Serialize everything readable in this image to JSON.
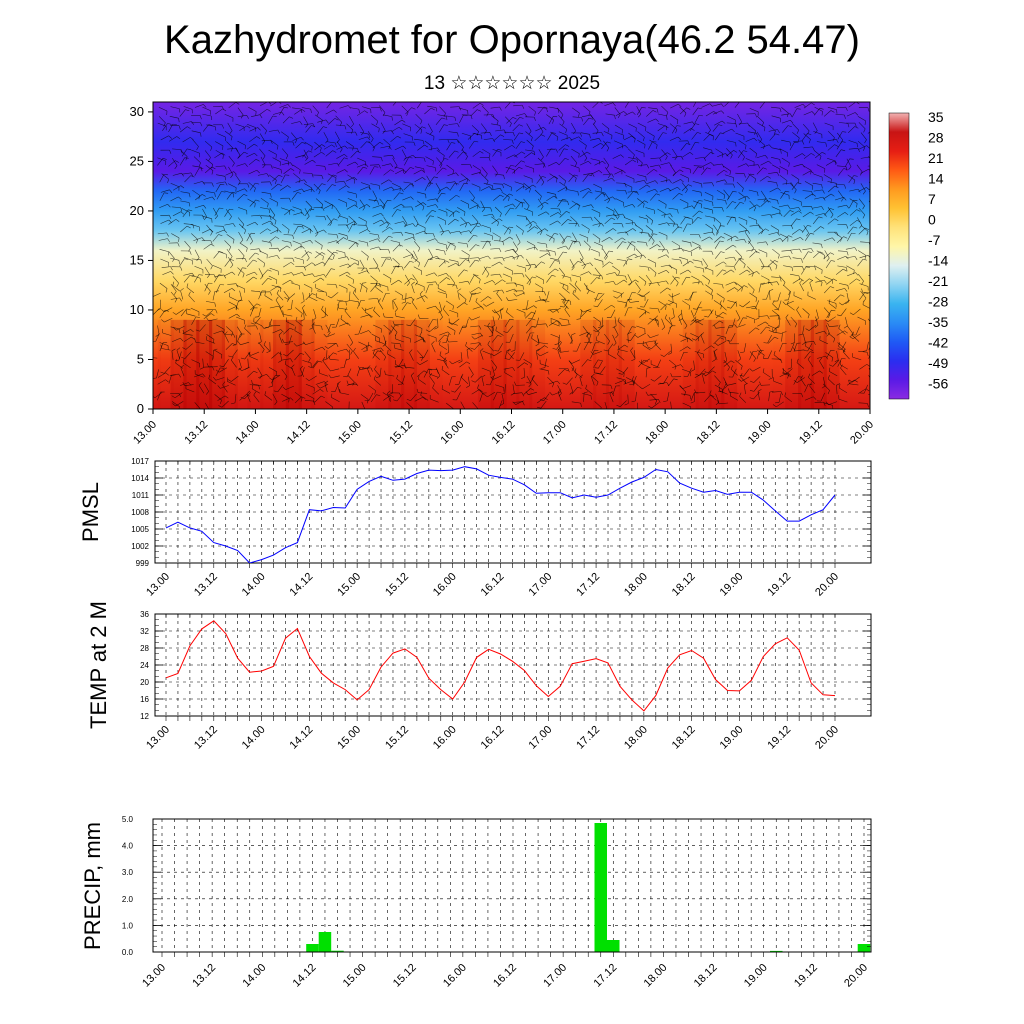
{
  "title": "Kazhydromet for Opornaya(46.2 54.47)",
  "subtitle": "13 ☆☆☆☆☆☆ 2025",
  "x_tick_labels": [
    "13.00",
    "13.12",
    "14.00",
    "14.12",
    "15.00",
    "15.12",
    "16.00",
    "16.12",
    "17.00",
    "17.12",
    "18.00",
    "18.12",
    "19.00",
    "19.12",
    "20.00"
  ],
  "colors": {
    "pmsl": "#0000ff",
    "temp": "#ff0000",
    "precip": "#00e000"
  },
  "chart_data": [
    {
      "type": "heatmap",
      "name": "cross-section",
      "y_ticks": [
        "0",
        "5",
        "10",
        "15",
        "20",
        "25",
        "30"
      ],
      "ylim": [
        0,
        31
      ],
      "xlim": [
        "13.00",
        "20.00"
      ],
      "colorbar_labels": [
        "35",
        "28",
        "21",
        "14",
        "7",
        "0",
        "-7",
        "-14",
        "-21",
        "-28",
        "-35",
        "-42",
        "-49",
        "-56"
      ],
      "colorbar_range": [
        -63,
        42
      ],
      "altitude_profile": [
        {
          "altitude": 0,
          "value": 32
        },
        {
          "altitude": 5,
          "value": 24
        },
        {
          "altitude": 10,
          "value": 12
        },
        {
          "altitude": 13,
          "value": 2
        },
        {
          "altitude": 16,
          "value": -10
        },
        {
          "altitude": 18,
          "value": -24
        },
        {
          "altitude": 20,
          "value": -32
        },
        {
          "altitude": 22,
          "value": -40
        },
        {
          "altitude": 24,
          "value": -56
        },
        {
          "altitude": 27,
          "value": -50
        },
        {
          "altitude": 31,
          "value": -60
        }
      ],
      "wind_barbs": true
    },
    {
      "type": "line",
      "ylabel": "PMSL",
      "y_ticks": [
        "999",
        "1002",
        "1005",
        "1008",
        "1011",
        "1014",
        "1017"
      ],
      "ylim": [
        999,
        1017
      ],
      "x_hours": [
        0,
        3,
        6,
        9,
        12,
        15,
        18,
        21,
        24,
        27,
        30,
        33,
        36,
        39,
        42,
        45,
        48,
        51,
        54,
        57,
        60,
        63,
        66,
        69,
        72,
        75,
        78,
        81,
        84,
        87,
        90,
        93,
        96,
        99,
        102,
        105,
        108,
        111,
        114,
        117,
        120,
        123,
        126,
        129,
        132,
        135,
        138,
        141,
        144,
        147,
        150,
        153,
        156,
        159,
        162,
        165,
        168
      ],
      "values": [
        1005.2,
        1006.2,
        1005.2,
        1004.6,
        1002.6,
        1002.0,
        1001.2,
        999.0,
        999.6,
        1000.4,
        1001.7,
        1002.6,
        1008.4,
        1008.2,
        1008.8,
        1008.7,
        1012.0,
        1013.4,
        1014.3,
        1013.6,
        1013.8,
        1014.8,
        1015.4,
        1015.3,
        1015.4,
        1016.0,
        1015.6,
        1014.5,
        1014.1,
        1013.8,
        1012.8,
        1011.3,
        1011.4,
        1011.4,
        1010.5,
        1011.0,
        1010.6,
        1011.0,
        1012.2,
        1013.3,
        1014.1,
        1015.5,
        1015.1,
        1013.1,
        1012.2,
        1011.5,
        1011.8,
        1011.1,
        1011.5,
        1011.5,
        1010.1,
        1008.2,
        1006.4,
        1006.4,
        1007.5,
        1008.4,
        1011.0
      ]
    },
    {
      "type": "line",
      "ylabel": "TEMP at 2 M",
      "y_ticks": [
        "12",
        "16",
        "20",
        "24",
        "28",
        "32",
        "36"
      ],
      "ylim": [
        12,
        36
      ],
      "x_hours": [
        0,
        3,
        6,
        9,
        12,
        15,
        18,
        21,
        24,
        27,
        30,
        33,
        36,
        39,
        42,
        45,
        48,
        51,
        54,
        57,
        60,
        63,
        66,
        69,
        72,
        75,
        78,
        81,
        84,
        87,
        90,
        93,
        96,
        99,
        102,
        105,
        108,
        111,
        114,
        117,
        120,
        123,
        126,
        129,
        132,
        135,
        138,
        141,
        144,
        147,
        150,
        153,
        156,
        159,
        162,
        165,
        168
      ],
      "values": [
        21.0,
        22.0,
        28.5,
        32.5,
        34.4,
        31.4,
        25.6,
        22.3,
        22.6,
        23.7,
        30.3,
        32.6,
        26.0,
        22.1,
        19.8,
        18.2,
        15.8,
        18.2,
        23.5,
        26.8,
        27.8,
        25.8,
        20.9,
        18.2,
        16.0,
        20.0,
        25.8,
        27.7,
        26.6,
        24.9,
        22.7,
        19.1,
        16.6,
        19.0,
        24.3,
        24.9,
        25.5,
        24.5,
        19.0,
        15.8,
        13.2,
        16.8,
        23.3,
        26.4,
        27.4,
        25.6,
        20.6,
        18.0,
        17.9,
        20.4,
        26.0,
        29.0,
        30.4,
        27.5,
        19.8,
        17.0,
        16.8
      ]
    },
    {
      "type": "bar",
      "ylabel": "PRECIP, mm",
      "y_ticks": [
        "0.0",
        "1.0",
        "2.0",
        "3.0",
        "4.0",
        "5.0"
      ],
      "ylim": [
        0,
        5.0
      ],
      "x_hours": [
        36,
        39,
        42,
        105,
        108,
        147,
        168
      ],
      "values": [
        0.3,
        0.75,
        0.05,
        4.85,
        0.45,
        0.04,
        0.3
      ]
    }
  ]
}
